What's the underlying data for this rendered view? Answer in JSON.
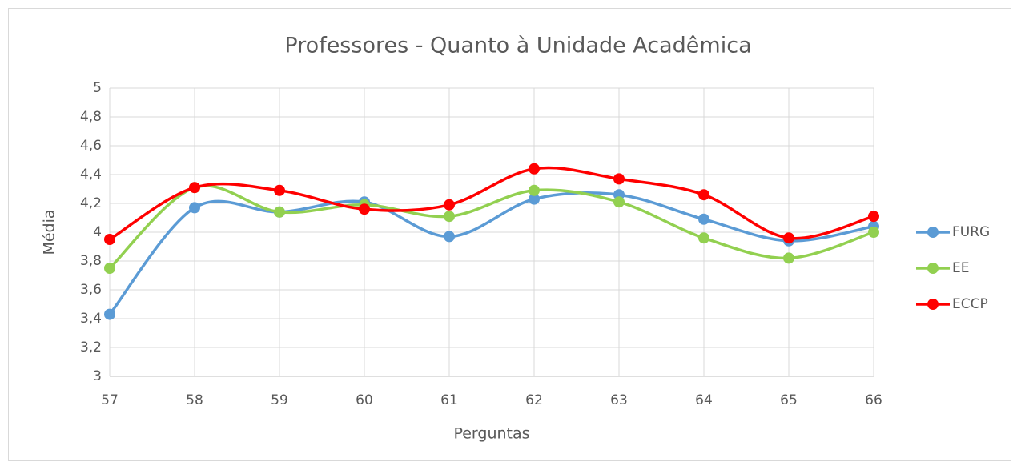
{
  "chart_data": {
    "type": "line",
    "title": "Professores - Quanto à Unidade Acadêmica",
    "x_label": "Perguntas",
    "y_label": "Média",
    "x": [
      57,
      58,
      59,
      60,
      61,
      62,
      63,
      64,
      65,
      66
    ],
    "xlim": [
      57,
      66
    ],
    "xticks": [
      57,
      58,
      59,
      60,
      61,
      62,
      63,
      64,
      65,
      66
    ],
    "ylim": [
      3,
      5
    ],
    "yticks": [
      3,
      {
        "value": 3.2,
        "label": "3,2"
      },
      {
        "value": 3.4,
        "label": "3,4"
      },
      {
        "value": 3.6,
        "label": "3,6"
      },
      {
        "value": 3.8,
        "label": "3,8"
      },
      4,
      {
        "value": 4.2,
        "label": "4,2"
      },
      {
        "value": 4.4,
        "label": "4,4"
      },
      {
        "value": 4.6,
        "label": "4,6"
      },
      {
        "value": 4.8,
        "label": "4,8"
      },
      5
    ],
    "grid": true,
    "smooth": true,
    "legend": "right",
    "series": [
      {
        "name": "FURG",
        "color": "#5b9bd5",
        "values": [
          3.43,
          4.17,
          4.14,
          4.21,
          3.97,
          4.23,
          4.26,
          4.09,
          3.94,
          4.04
        ]
      },
      {
        "name": "EE",
        "color": "#92d050",
        "values": [
          3.75,
          4.31,
          4.14,
          4.19,
          4.11,
          4.29,
          4.21,
          3.96,
          3.82,
          4.0
        ]
      },
      {
        "name": "ECCP",
        "color": "#ff0000",
        "values": [
          3.95,
          4.31,
          4.29,
          4.16,
          4.19,
          4.44,
          4.37,
          4.26,
          3.96,
          4.11
        ]
      }
    ]
  }
}
